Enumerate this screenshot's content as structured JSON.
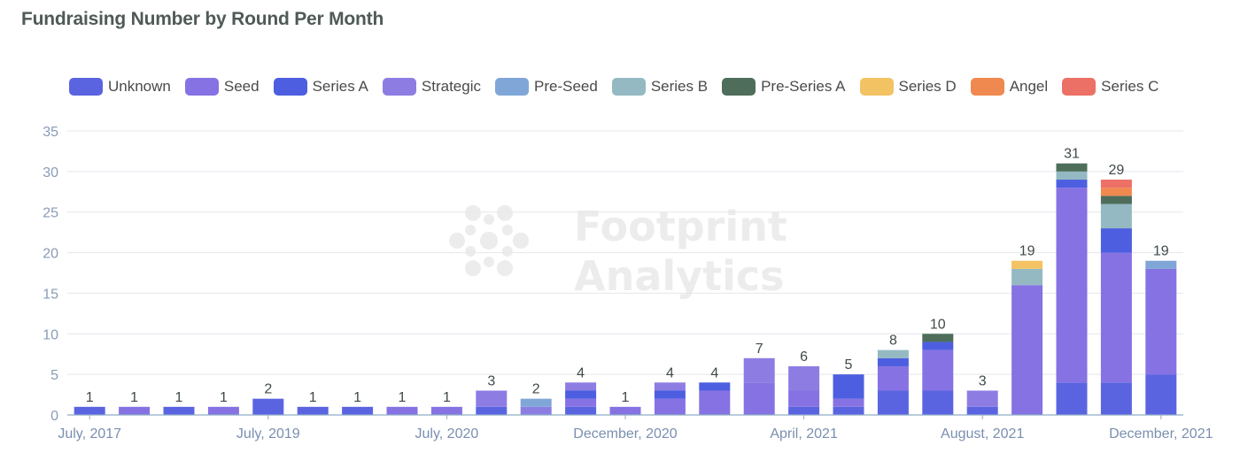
{
  "title": "Fundraising Number by Round Per Month",
  "watermark": [
    "Footprint",
    "Analytics"
  ],
  "chart_data": {
    "type": "bar",
    "stacked": true,
    "title": "Fundraising Number by Round Per Month",
    "xlabel": "",
    "ylabel": "",
    "ylim": [
      0,
      35
    ],
    "yticks": [
      0,
      5,
      10,
      15,
      20,
      25,
      30,
      35
    ],
    "grid": true,
    "legend_position": "top",
    "x_tick_labels": [
      {
        "index": 0,
        "label": "July, 2017"
      },
      {
        "index": 4,
        "label": "July, 2019"
      },
      {
        "index": 8,
        "label": "July, 2020"
      },
      {
        "index": 12,
        "label": "December, 2020"
      },
      {
        "index": 16,
        "label": "April, 2021"
      },
      {
        "index": 20,
        "label": "August, 2021"
      },
      {
        "index": 24,
        "label": "December, 2021"
      }
    ],
    "totals": [
      1,
      1,
      1,
      1,
      2,
      1,
      1,
      1,
      1,
      3,
      2,
      4,
      1,
      4,
      4,
      7,
      6,
      5,
      8,
      10,
      3,
      19,
      31,
      29,
      19
    ],
    "series": [
      {
        "name": "Unknown",
        "color": "#5b64e0",
        "values": [
          1,
          0,
          1,
          0,
          2,
          1,
          1,
          0,
          0,
          1,
          0,
          1,
          0,
          0,
          0,
          0,
          1,
          1,
          3,
          3,
          1,
          0,
          4,
          4,
          5
        ]
      },
      {
        "name": "Seed",
        "color": "#8672e3",
        "values": [
          0,
          1,
          0,
          1,
          0,
          0,
          0,
          1,
          1,
          0,
          0,
          1,
          1,
          2,
          3,
          4,
          2,
          1,
          3,
          5,
          0,
          16,
          24,
          16,
          13
        ]
      },
      {
        "name": "Series A",
        "color": "#4d5fe0",
        "values": [
          0,
          0,
          0,
          0,
          0,
          0,
          0,
          0,
          0,
          0,
          0,
          1,
          0,
          1,
          1,
          0,
          0,
          3,
          1,
          1,
          0,
          0,
          1,
          3,
          0
        ]
      },
      {
        "name": "Strategic",
        "color": "#8d7de3",
        "values": [
          0,
          0,
          0,
          0,
          0,
          0,
          0,
          0,
          0,
          2,
          1,
          1,
          0,
          1,
          0,
          3,
          3,
          0,
          0,
          0,
          2,
          0,
          0,
          0,
          0
        ]
      },
      {
        "name": "Pre-Seed",
        "color": "#7fa6d6",
        "values": [
          0,
          0,
          0,
          0,
          0,
          0,
          0,
          0,
          0,
          0,
          1,
          0,
          0,
          0,
          0,
          0,
          0,
          0,
          0,
          0,
          0,
          0,
          0,
          0,
          1
        ]
      },
      {
        "name": "Series B",
        "color": "#94b9c3",
        "values": [
          0,
          0,
          0,
          0,
          0,
          0,
          0,
          0,
          0,
          0,
          0,
          0,
          0,
          0,
          0,
          0,
          0,
          0,
          1,
          0,
          0,
          2,
          1,
          3,
          0
        ]
      },
      {
        "name": "Pre-Series A",
        "color": "#4e6e5b",
        "values": [
          0,
          0,
          0,
          0,
          0,
          0,
          0,
          0,
          0,
          0,
          0,
          0,
          0,
          0,
          0,
          0,
          0,
          0,
          0,
          1,
          0,
          0,
          1,
          1,
          0
        ]
      },
      {
        "name": "Series D",
        "color": "#f3c363",
        "values": [
          0,
          0,
          0,
          0,
          0,
          0,
          0,
          0,
          0,
          0,
          0,
          0,
          0,
          0,
          0,
          0,
          0,
          0,
          0,
          0,
          0,
          1,
          0,
          0,
          0
        ]
      },
      {
        "name": "Angel",
        "color": "#f0894f",
        "values": [
          0,
          0,
          0,
          0,
          0,
          0,
          0,
          0,
          0,
          0,
          0,
          0,
          0,
          0,
          0,
          0,
          0,
          0,
          0,
          0,
          0,
          0,
          0,
          1,
          0
        ]
      },
      {
        "name": "Series C",
        "color": "#ec7066",
        "values": [
          0,
          0,
          0,
          0,
          0,
          0,
          0,
          0,
          0,
          0,
          0,
          0,
          0,
          0,
          0,
          0,
          0,
          0,
          0,
          0,
          0,
          0,
          0,
          1,
          0
        ]
      }
    ]
  }
}
